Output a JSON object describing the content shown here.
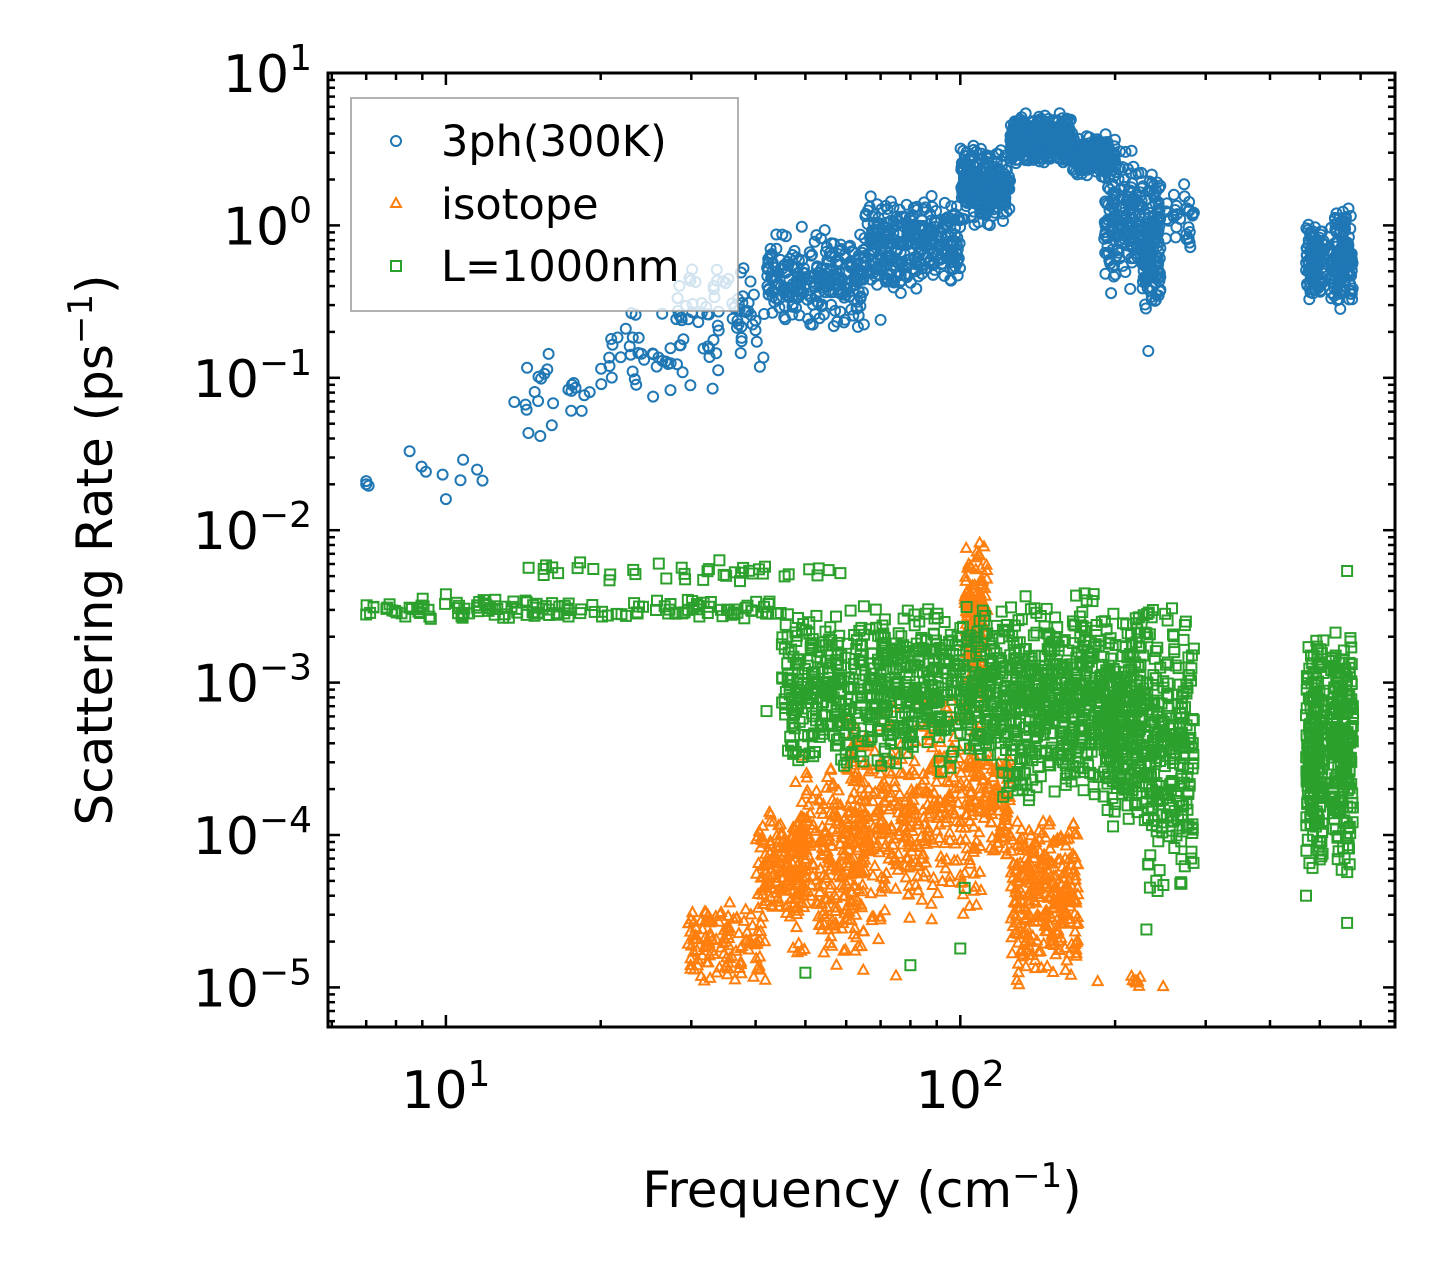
{
  "chart_data": {
    "type": "scatter",
    "xscale": "log",
    "yscale": "log",
    "xlim": [
      5.9,
      700
    ],
    "ylim": [
      5.5e-06,
      10
    ],
    "xlabel": "Frequency (cm",
    "xlabel_exponent": "−1",
    "xlabel_close": ")",
    "ylabel": "Scattering Rate (ps",
    "ylabel_exponent": "−1",
    "ylabel_close": ")",
    "x_ticks": [
      {
        "value": 10,
        "base": "10",
        "exp": "1"
      },
      {
        "value": 100,
        "base": "10",
        "exp": "2"
      }
    ],
    "y_ticks": [
      {
        "value": 10,
        "base": "10",
        "exp": "1"
      },
      {
        "value": 1,
        "base": "10",
        "exp": "0"
      },
      {
        "value": 0.1,
        "base": "10",
        "exp": "−1"
      },
      {
        "value": 0.01,
        "base": "10",
        "exp": "−2"
      },
      {
        "value": 0.001,
        "base": "10",
        "exp": "−3"
      },
      {
        "value": 0.0001,
        "base": "10",
        "exp": "−4"
      },
      {
        "value": 1e-05,
        "base": "10",
        "exp": "−5"
      }
    ],
    "legend_position": "upper-left",
    "series": [
      {
        "name": "3ph(300K)",
        "marker": "circle",
        "color": "#1f77b4",
        "bands": [
          {
            "x": [
              7,
              12
            ],
            "y": [
              0.016,
              0.033
            ],
            "n": 6
          },
          {
            "x": [
              13.5,
              20
            ],
            "y": [
              0.028,
              0.15
            ],
            "n": 24
          },
          {
            "x": [
              20,
              30
            ],
            "y": [
              0.07,
              0.3
            ],
            "n": 40
          },
          {
            "x": [
              28,
              42
            ],
            "y": [
              0.09,
              0.75
            ],
            "n": 70
          },
          {
            "x": [
              42,
              65
            ],
            "y": [
              0.2,
              1.0
            ],
            "n": 260
          },
          {
            "x": [
              65,
              100
            ],
            "y": [
              0.35,
              1.6
            ],
            "n": 340
          },
          {
            "x": [
              100,
              125
            ],
            "y": [
              1.0,
              3.5
            ],
            "n": 300
          },
          {
            "x": [
              125,
              165
            ],
            "y": [
              2.5,
              5.5
            ],
            "n": 400
          },
          {
            "x": [
              165,
              200
            ],
            "y": [
              2.0,
              4.0
            ],
            "n": 200
          },
          {
            "x": [
              190,
              225
            ],
            "y": [
              0.35,
              3.5
            ],
            "n": 180
          },
          {
            "x": [
              225,
              245
            ],
            "y": [
              0.25,
              2.5
            ],
            "n": 150
          },
          {
            "x": [
              250,
              285
            ],
            "y": [
              0.7,
              2.0
            ],
            "n": 30
          },
          {
            "x": [
              470,
              510
            ],
            "y": [
              0.3,
              1.1
            ],
            "n": 120
          },
          {
            "x": [
              525,
              580
            ],
            "y": [
              0.28,
              1.4
            ],
            "n": 150
          }
        ],
        "outliers": [
          [
            7,
            0.021
          ],
          [
            7,
            0.02
          ],
          [
            8.5,
            0.033
          ],
          [
            10,
            0.016
          ],
          [
            10.8,
            0.029
          ],
          [
            11.5,
            0.025
          ],
          [
            70,
            0.24
          ],
          [
            232,
            0.15
          ],
          [
            33,
            0.085
          ],
          [
            280,
            0.72
          ]
        ]
      },
      {
        "name": "isotope",
        "marker": "triangle",
        "color": "#ff7f0e",
        "bands": [
          {
            "x": [
              29.5,
              42
            ],
            "y": [
              1e-05,
              4e-05
            ],
            "n": 120
          },
          {
            "x": [
              40,
              50
            ],
            "y": [
              2.5e-05,
              0.00015
            ],
            "n": 150
          },
          {
            "x": [
              47,
              65
            ],
            "y": [
              1.2e-05,
              0.00035
            ],
            "n": 260
          },
          {
            "x": [
              60,
              85
            ],
            "y": [
              2e-05,
              0.0008
            ],
            "n": 260
          },
          {
            "x": [
              85,
              112
            ],
            "y": [
              3e-05,
              0.001
            ],
            "n": 200
          },
          {
            "x": [
              102,
              113
            ],
            "y": [
              0.0006,
              0.0095
            ],
            "n": 130
          },
          {
            "x": [
              112,
              125
            ],
            "y": [
              5e-05,
              0.0006
            ],
            "n": 80
          },
          {
            "x": [
              125,
              170
            ],
            "y": [
              1e-05,
              0.00015
            ],
            "n": 300
          },
          {
            "x": [
              215,
              225
            ],
            "y": [
              1e-05,
              1.2e-05
            ],
            "n": 10
          }
        ],
        "outliers": [
          [
            248,
            1.02e-05
          ],
          [
            185,
            1.1e-05
          ],
          [
            130,
            1.05e-05
          ],
          [
            88,
            2.8e-05
          ],
          [
            75,
            1.2e-05
          ]
        ]
      },
      {
        "name": "L=1000nm",
        "marker": "square",
        "color": "#2ca02c",
        "bands": [
          {
            "x": [
              7,
              45
            ],
            "y": [
              0.0026,
              0.0036
            ],
            "n": 140
          },
          {
            "x": [
              14,
              60
            ],
            "y": [
              0.0045,
              0.0065
            ],
            "n": 40
          },
          {
            "x": [
              45,
              120
            ],
            "y": [
              0.00025,
              0.0035
            ],
            "n": 700
          },
          {
            "x": [
              120,
              190
            ],
            "y": [
              0.00015,
              0.0045
            ],
            "n": 500
          },
          {
            "x": [
              190,
              230
            ],
            "y": [
              0.0001,
              0.0033
            ],
            "n": 300
          },
          {
            "x": [
              230,
              285
            ],
            "y": [
              3e-05,
              0.004
            ],
            "n": 250
          },
          {
            "x": [
              470,
              510
            ],
            "y": [
              5e-05,
              0.0025
            ],
            "n": 220
          },
          {
            "x": [
              525,
              580
            ],
            "y": [
              5e-05,
              0.0028
            ],
            "n": 240
          }
        ],
        "outliers": [
          [
            7,
            0.0028
          ],
          [
            8.5,
            0.0031
          ],
          [
            10,
            0.0038
          ],
          [
            11.5,
            0.0031
          ],
          [
            42,
            0.00065
          ],
          [
            102,
            4.5e-05
          ],
          [
            80,
            1.4e-05
          ],
          [
            50,
            1.25e-05
          ],
          [
            230,
            2.4e-05
          ],
          [
            565,
            2.65e-05
          ],
          [
            565,
            0.0054
          ],
          [
            470,
            4e-05
          ],
          [
            100,
            1.8e-05
          ]
        ]
      }
    ]
  }
}
